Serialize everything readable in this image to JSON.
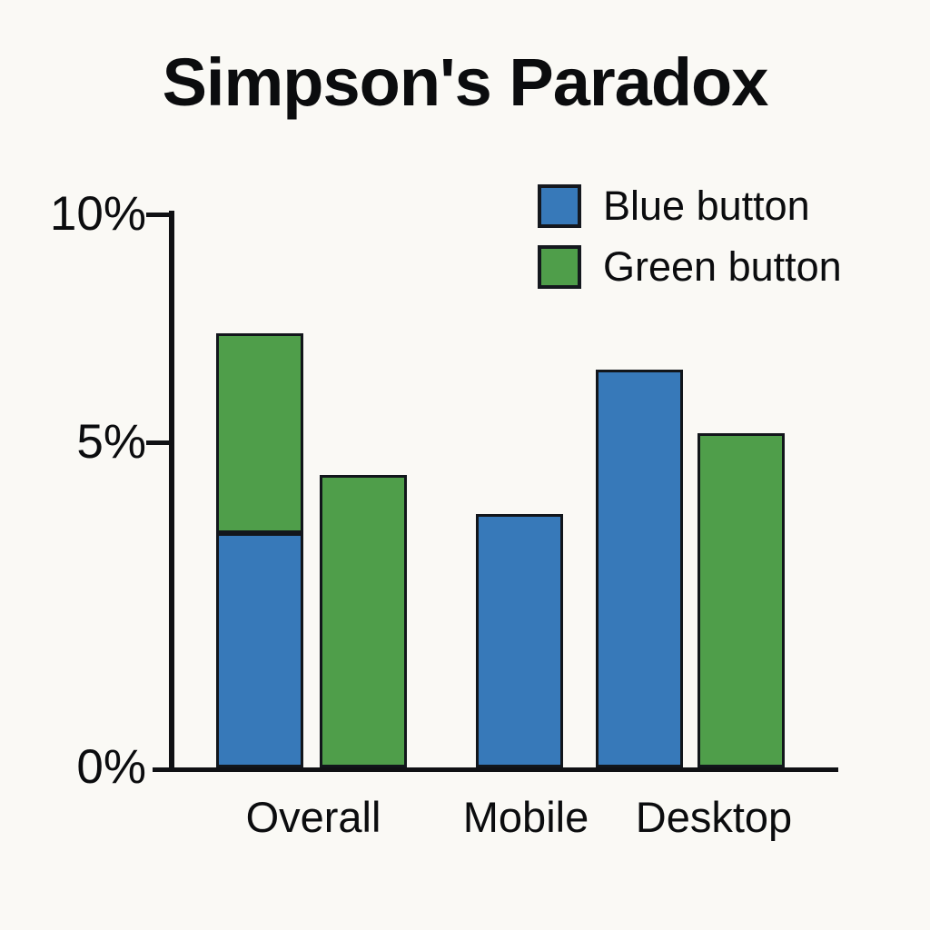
{
  "page": {
    "background_color": "#faf9f5",
    "text_color": "#0b0c0e"
  },
  "chart_data": {
    "type": "bar",
    "title": "Simpson's Paradox",
    "xlabel": "",
    "ylabel": "",
    "ylim": [
      0,
      10
    ],
    "grid": false,
    "categories": [
      "Overall",
      "Mobile",
      "Desktop"
    ],
    "yticks": [
      {
        "value": 0,
        "label": "0%"
      },
      {
        "value": 5,
        "label": "5%"
      },
      {
        "value": 10,
        "label": "10%"
      }
    ],
    "legend": {
      "position": "top-right",
      "entries": [
        {
          "name": "Blue button",
          "label": "Blue button",
          "color": "#3779b9"
        },
        {
          "name": "Green button",
          "label": "Green button",
          "color": "#4f9e4a"
        }
      ]
    },
    "bars": [
      {
        "category": "Overall",
        "segments": [
          {
            "series": "Blue button",
            "from": 0,
            "to": 3.6
          },
          {
            "series": "Green button",
            "from": 3.6,
            "to": 7.4
          }
        ]
      },
      {
        "category": "Overall",
        "segments": [
          {
            "series": "Green button",
            "from": 0,
            "to": 4.5
          }
        ]
      },
      {
        "category": "Mobile",
        "segments": [
          {
            "series": "Blue button",
            "from": 0,
            "to": 3.9
          }
        ]
      },
      {
        "category": "Desktop",
        "segments": [
          {
            "series": "Blue button",
            "from": 0,
            "to": 6.6
          }
        ]
      },
      {
        "category": "Desktop",
        "segments": [
          {
            "series": "Green button",
            "from": 0,
            "to": 5.2
          }
        ]
      }
    ],
    "colors": {
      "axis": "#101114",
      "bar_border": "#12161b",
      "swatch_border": "#14181e"
    }
  }
}
